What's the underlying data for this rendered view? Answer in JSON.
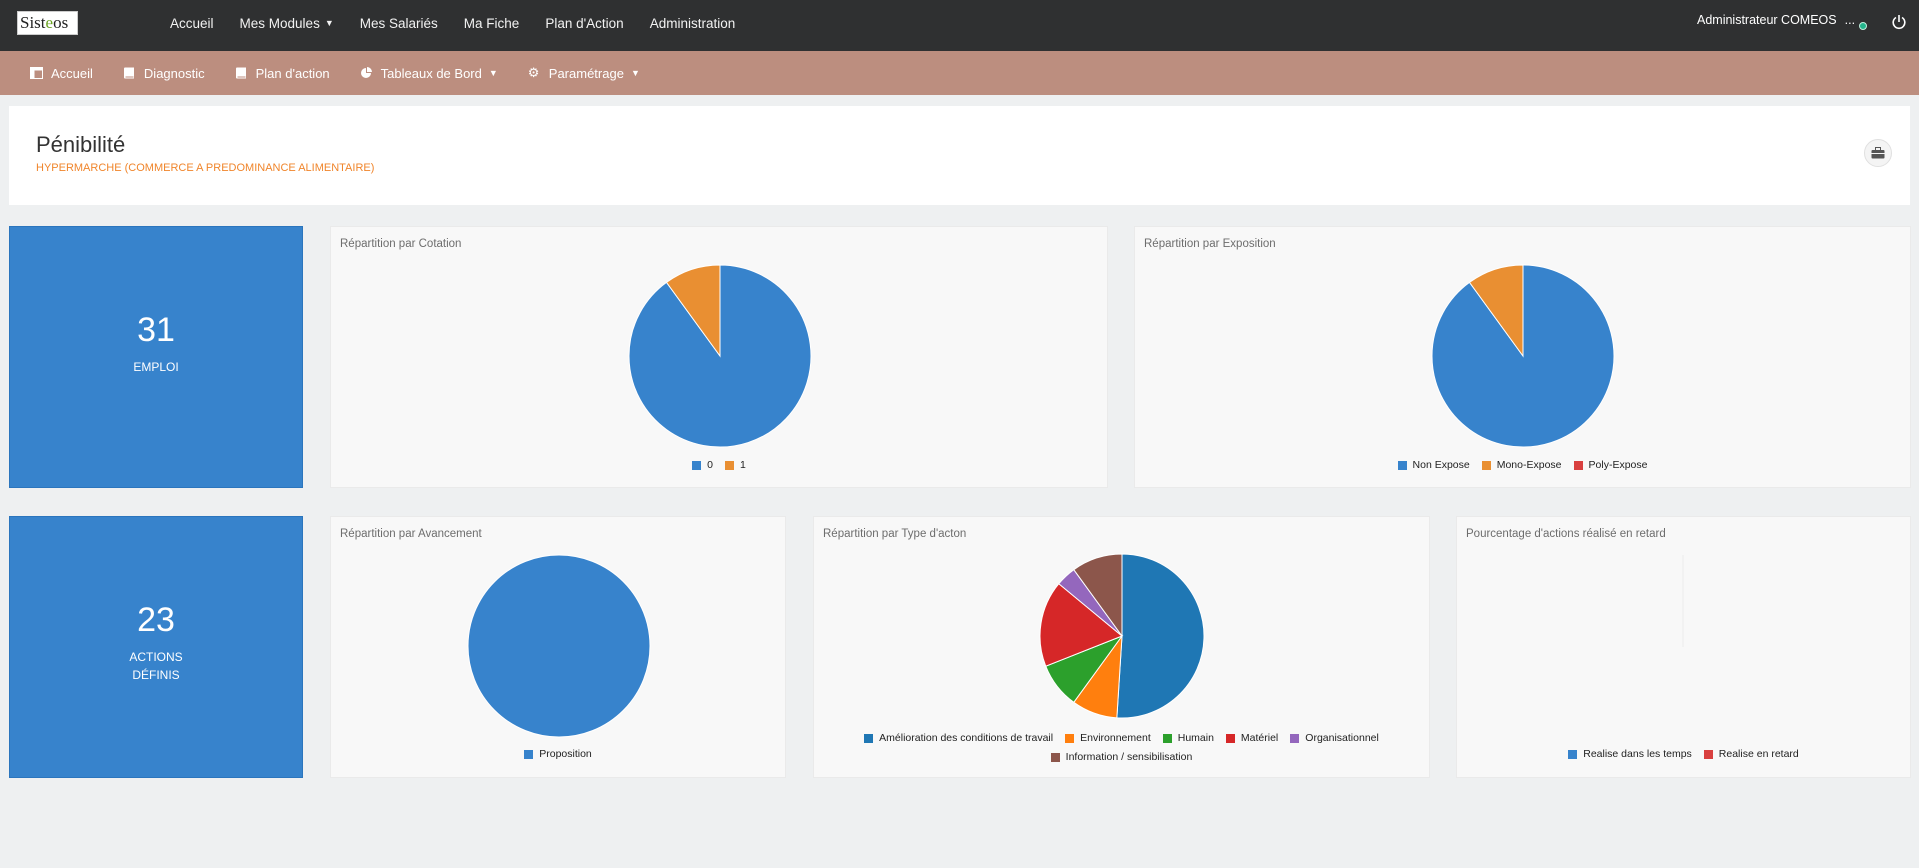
{
  "topbar": {
    "logo_text": "Sist",
    "logo_o": "e",
    "logo_rest": "os",
    "nav": [
      {
        "label": "Accueil",
        "caret": false
      },
      {
        "label": "Mes Modules",
        "caret": true
      },
      {
        "label": "Mes Salariés",
        "caret": false
      },
      {
        "label": "Ma Fiche",
        "caret": false
      },
      {
        "label": "Plan d'Action",
        "caret": false
      },
      {
        "label": "Administration",
        "caret": false
      }
    ],
    "user": "Administrateur COMEOS",
    "user_more": "...",
    "status_color": "#24b48c"
  },
  "subbar": {
    "items": [
      {
        "label": "Accueil",
        "icon": "layout-icon",
        "caret": false
      },
      {
        "label": "Diagnostic",
        "icon": "book-icon",
        "caret": false
      },
      {
        "label": "Plan d'action",
        "icon": "book-icon",
        "caret": false
      },
      {
        "label": "Tableaux de Bord",
        "icon": "pie-chart-icon",
        "caret": true
      },
      {
        "label": "Paramétrage",
        "icon": "gear-icon",
        "caret": true
      }
    ]
  },
  "header": {
    "title": "Pénibilité",
    "subtitle": "HYPERMARCHE (COMMERCE A PREDOMINANCE ALIMENTAIRE)"
  },
  "stats": [
    {
      "value": "31",
      "label_line1": "EMPLOI",
      "label_line2": ""
    },
    {
      "value": "23",
      "label_line1": "ACTIONS",
      "label_line2": "DÉFINIS"
    }
  ],
  "colors": {
    "blue": "#3783cc",
    "orange": "#e98f32",
    "red": "#d9403f",
    "blue_dark": "#1f77b4",
    "red_dark": "#d62728",
    "orange_bright": "#ff7f0e",
    "green": "#2ca02c",
    "brown": "#8c564b",
    "purple": "#9467bd"
  },
  "panels": {
    "cotation": {
      "title": "Répartition par Cotation"
    },
    "exposition": {
      "title": "Répartition par Exposition"
    },
    "avancement": {
      "title": "Répartition par Avancement"
    },
    "type_action": {
      "title": "Répartition par Type d'acton"
    },
    "retard": {
      "title": "Pourcentage d'actions réalisé en retard"
    }
  },
  "chart_data": [
    {
      "type": "pie",
      "title": "Répartition par Cotation",
      "categories": [
        "0",
        "1"
      ],
      "values": [
        90,
        10
      ],
      "colors": [
        "#3783cc",
        "#e98f32"
      ],
      "legend": "bottom"
    },
    {
      "type": "pie",
      "title": "Répartition par Exposition",
      "categories": [
        "Non Expose",
        "Mono-Expose",
        "Poly-Expose"
      ],
      "values": [
        90,
        10,
        0
      ],
      "colors": [
        "#3783cc",
        "#e98f32",
        "#d9403f"
      ],
      "legend": "bottom"
    },
    {
      "type": "pie",
      "title": "Répartition par Avancement",
      "categories": [
        "Proposition"
      ],
      "values": [
        100
      ],
      "colors": [
        "#3783cc"
      ],
      "legend": "bottom"
    },
    {
      "type": "pie",
      "title": "Répartition par Type d'acton",
      "categories": [
        "Amélioration des conditions de travail",
        "Environnement",
        "Humain",
        "Matériel",
        "Organisationnel",
        "Information / sensibilisation"
      ],
      "values": [
        51,
        9,
        9,
        17,
        4,
        10
      ],
      "colors": [
        "#1f77b4",
        "#ff7f0e",
        "#2ca02c",
        "#d62728",
        "#9467bd",
        "#8c564b"
      ],
      "legend": "bottom"
    },
    {
      "type": "pie",
      "title": "Pourcentage d'actions réalisé en retard",
      "categories": [
        "Realise dans les temps",
        "Realise en retard"
      ],
      "values": [
        0,
        0
      ],
      "colors": [
        "#3783cc",
        "#d9403f"
      ],
      "legend": "bottom"
    }
  ]
}
